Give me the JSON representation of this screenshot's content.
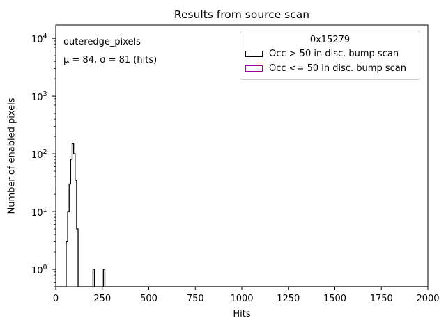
{
  "figure": {
    "background": "#ffffff",
    "spine_color": "#000000"
  },
  "chart_data": {
    "type": "bar",
    "subtype": "step-histogram",
    "title": "Results from source scan",
    "xlabel": "Hits",
    "ylabel": "Number of enabled pixels",
    "x_scale": "linear",
    "y_scale": "log",
    "xlim": [
      0,
      2000
    ],
    "ylim": [
      0.5,
      17000
    ],
    "x_ticks": [
      0,
      250,
      500,
      750,
      1000,
      1250,
      1500,
      1750,
      2000
    ],
    "y_tick_exponents": [
      0,
      1,
      2,
      3,
      4
    ],
    "grid": false,
    "legend_position": "upper right",
    "bin_width": 8,
    "series": [
      {
        "name": "Occ > 50 in disc. bump scan",
        "color": "#000000",
        "bins": [
          {
            "x0": 56,
            "x1": 64,
            "count": 3
          },
          {
            "x0": 64,
            "x1": 72,
            "count": 10
          },
          {
            "x0": 72,
            "x1": 80,
            "count": 30
          },
          {
            "x0": 80,
            "x1": 88,
            "count": 80
          },
          {
            "x0": 88,
            "x1": 96,
            "count": 150
          },
          {
            "x0": 96,
            "x1": 104,
            "count": 100
          },
          {
            "x0": 104,
            "x1": 112,
            "count": 35
          },
          {
            "x0": 112,
            "x1": 120,
            "count": 5
          },
          {
            "x0": 200,
            "x1": 208,
            "count": 1
          },
          {
            "x0": 256,
            "x1": 264,
            "count": 1
          }
        ]
      },
      {
        "name": "Occ <= 50 in disc. bump scan",
        "color": "#990099",
        "bins": []
      }
    ]
  },
  "annotation": {
    "line1": "outeredge_pixels",
    "line2": "μ = 84, σ = 81 (hits)",
    "mu_hits": 84,
    "sigma_hits": 81
  },
  "legend": {
    "title": "0x15279",
    "entries": [
      {
        "label": "Occ > 50 in disc. bump scan",
        "color": "#000000"
      },
      {
        "label": "Occ <= 50 in disc. bump scan",
        "color": "#990099"
      }
    ]
  }
}
